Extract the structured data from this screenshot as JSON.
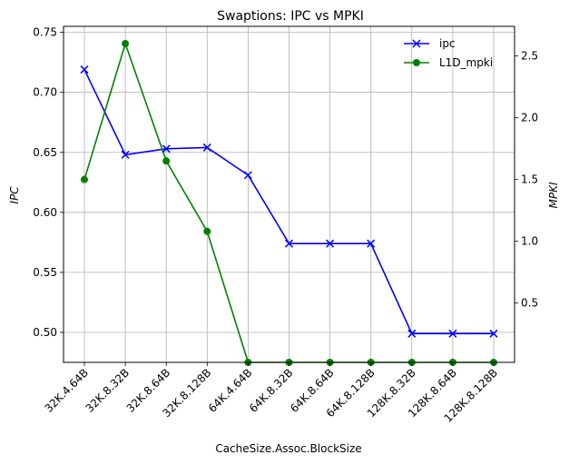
{
  "chart_data": {
    "type": "line",
    "title": "Swaptions: IPC vs MPKI",
    "xlabel": "CacheSize.Assoc.BlockSize",
    "ylabel_left": "IPC",
    "ylabel_right": "MPKI",
    "categories": [
      "32K.4.64B",
      "32K.8.32B",
      "32K.8.64B",
      "32K.8.128B",
      "64K.4.64B",
      "64K.8.32B",
      "64K.8.64B",
      "64K.8.128B",
      "128K.8.32B",
      "128K.8.64B",
      "128K.8.128B"
    ],
    "ylim_left": [
      0.475,
      0.755
    ],
    "yticks_left": [
      "0.50",
      "0.55",
      "0.60",
      "0.65",
      "0.70",
      "0.75"
    ],
    "ylim_right": [
      0.02,
      2.74
    ],
    "yticks_right": [
      "0.5",
      "1.0",
      "1.5",
      "2.0",
      "2.5"
    ],
    "grid": true,
    "legend_position": "top-right",
    "series": [
      {
        "name": "ipc",
        "axis": "left",
        "color": "#0000ff",
        "marker": "x",
        "values": [
          0.719,
          0.648,
          0.653,
          0.654,
          0.631,
          0.574,
          0.574,
          0.574,
          0.499,
          0.499,
          0.499
        ]
      },
      {
        "name": "L1D_mpki",
        "axis": "right",
        "color": "#008000",
        "marker": "o",
        "values": [
          1.5,
          2.6,
          1.65,
          1.08,
          0.02,
          0.02,
          0.02,
          0.02,
          0.02,
          0.02,
          0.02
        ]
      }
    ]
  }
}
